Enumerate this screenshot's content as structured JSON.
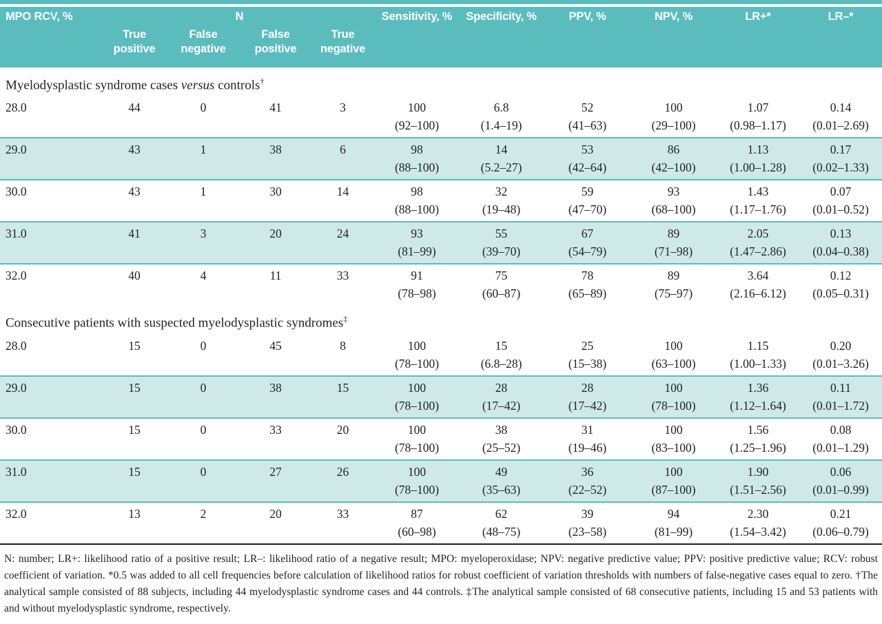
{
  "colors": {
    "header_teal": "#5bbcbd",
    "shaded_row_teal": "#cfe9e9",
    "text": "#231f20"
  },
  "table": {
    "header": {
      "mpo_label": "MPO RCV, %",
      "group_label": "N",
      "sub_columns": [
        "True positive",
        "False negative",
        "False positive",
        "True negative"
      ],
      "stat_columns": [
        "Sensitivity, %",
        "Specificity, %",
        "PPV, %",
        "NPV, %",
        "LR+*",
        "LR–*"
      ]
    },
    "sections": [
      {
        "title": [
          {
            "t": "Myelodysplastic syndrome cases "
          },
          {
            "t": "versus",
            "style": "italic"
          },
          {
            "t": " controls"
          },
          {
            "t": "†",
            "style": "sup"
          }
        ],
        "rows": [
          {
            "shaded": false,
            "cells": [
              {
                "v": "28.0"
              },
              {
                "v": "44"
              },
              {
                "v": "0"
              },
              {
                "v": "41"
              },
              {
                "v": "3"
              },
              {
                "v": "100",
                "ci": "(92–100)"
              },
              {
                "v": "6.8",
                "ci": "(1.4–19)"
              },
              {
                "v": "52",
                "ci": "(41–63)"
              },
              {
                "v": "100",
                "ci": "(29–100)"
              },
              {
                "v": "1.07",
                "ci": "(0.98–1.17)"
              },
              {
                "v": "0.14",
                "ci": "(0.01–2.69)"
              }
            ]
          },
          {
            "shaded": true,
            "cells": [
              {
                "v": "29.0"
              },
              {
                "v": "43"
              },
              {
                "v": "1"
              },
              {
                "v": "38"
              },
              {
                "v": "6"
              },
              {
                "v": "98",
                "ci": "(88–100)"
              },
              {
                "v": "14",
                "ci": "(5.2–27)"
              },
              {
                "v": "53",
                "ci": "(42–64)"
              },
              {
                "v": "86",
                "ci": "(42–100)"
              },
              {
                "v": "1.13",
                "ci": "(1.00–1.28)"
              },
              {
                "v": "0.17",
                "ci": "(0.02–1.33)"
              }
            ]
          },
          {
            "shaded": false,
            "cells": [
              {
                "v": "30.0"
              },
              {
                "v": "43"
              },
              {
                "v": "1"
              },
              {
                "v": "30"
              },
              {
                "v": "14"
              },
              {
                "v": "98",
                "ci": "(88–100)"
              },
              {
                "v": "32",
                "ci": "(19–48)"
              },
              {
                "v": "59",
                "ci": "(47–70)"
              },
              {
                "v": "93",
                "ci": "(68–100)"
              },
              {
                "v": "1.43",
                "ci": "(1.17–1.76)"
              },
              {
                "v": "0.07",
                "ci": "(0.01–0.52)"
              }
            ]
          },
          {
            "shaded": true,
            "cells": [
              {
                "v": "31.0"
              },
              {
                "v": "41"
              },
              {
                "v": "3"
              },
              {
                "v": "20"
              },
              {
                "v": "24"
              },
              {
                "v": "93",
                "ci": "(81–99)"
              },
              {
                "v": "55",
                "ci": "(39–70)"
              },
              {
                "v": "67",
                "ci": "(54–79)"
              },
              {
                "v": "89",
                "ci": "(71–98)"
              },
              {
                "v": "2.05",
                "ci": "(1.47–2.86)"
              },
              {
                "v": "0.13",
                "ci": "(0.04–0.38)"
              }
            ]
          },
          {
            "shaded": false,
            "cells": [
              {
                "v": "32.0"
              },
              {
                "v": "40"
              },
              {
                "v": "4"
              },
              {
                "v": "11"
              },
              {
                "v": "33"
              },
              {
                "v": "91",
                "ci": "(78–98)"
              },
              {
                "v": "75",
                "ci": "(60–87)"
              },
              {
                "v": "78",
                "ci": "(65–89)"
              },
              {
                "v": "89",
                "ci": "(75–97)"
              },
              {
                "v": "3.64",
                "ci": "(2.16–6.12)"
              },
              {
                "v": "0.12",
                "ci": "(0.05–0.31)"
              }
            ]
          }
        ]
      },
      {
        "title": [
          {
            "t": "Consecutive patients with suspected myelodysplastic syndromes"
          },
          {
            "t": "‡",
            "style": "sup"
          }
        ],
        "rows": [
          {
            "shaded": false,
            "cells": [
              {
                "v": "28.0"
              },
              {
                "v": "15"
              },
              {
                "v": "0"
              },
              {
                "v": "45"
              },
              {
                "v": "8"
              },
              {
                "v": "100",
                "ci": "(78–100)"
              },
              {
                "v": "15",
                "ci": "(6.8–28)"
              },
              {
                "v": "25",
                "ci": "(15–38)"
              },
              {
                "v": "100",
                "ci": "(63–100)"
              },
              {
                "v": "1.15",
                "ci": "(1.00–1.33)"
              },
              {
                "v": "0.20",
                "ci": "(0.01–3.26)"
              }
            ]
          },
          {
            "shaded": true,
            "cells": [
              {
                "v": "29.0"
              },
              {
                "v": "15"
              },
              {
                "v": "0"
              },
              {
                "v": "38"
              },
              {
                "v": "15"
              },
              {
                "v": "100",
                "ci": "(78–100)"
              },
              {
                "v": "28",
                "ci": "(17–42)"
              },
              {
                "v": "28",
                "ci": "(17–42)"
              },
              {
                "v": "100",
                "ci": "(78–100)"
              },
              {
                "v": "1.36",
                "ci": "(1.12–1.64)"
              },
              {
                "v": "0.11",
                "ci": "(0.01–1.72)"
              }
            ]
          },
          {
            "shaded": false,
            "cells": [
              {
                "v": "30.0"
              },
              {
                "v": "15"
              },
              {
                "v": "0"
              },
              {
                "v": "33"
              },
              {
                "v": "20"
              },
              {
                "v": "100",
                "ci": "(78–100)"
              },
              {
                "v": "38",
                "ci": "(25–52)"
              },
              {
                "v": "31",
                "ci": "(19–46)"
              },
              {
                "v": "100",
                "ci": "(83–100)"
              },
              {
                "v": "1.56",
                "ci": "(1.25–1.96)"
              },
              {
                "v": "0.08",
                "ci": "(0.01–1.29)"
              }
            ]
          },
          {
            "shaded": true,
            "cells": [
              {
                "v": "31.0"
              },
              {
                "v": "15"
              },
              {
                "v": "0"
              },
              {
                "v": "27"
              },
              {
                "v": "26"
              },
              {
                "v": "100",
                "ci": "(78–100)"
              },
              {
                "v": "49",
                "ci": "(35–63)"
              },
              {
                "v": "36",
                "ci": "(22–52)"
              },
              {
                "v": "100",
                "ci": "(87–100)"
              },
              {
                "v": "1.90",
                "ci": "(1.51–2.56)"
              },
              {
                "v": "0.06",
                "ci": "(0.01–0.99)"
              }
            ]
          },
          {
            "shaded": false,
            "cells": [
              {
                "v": "32.0"
              },
              {
                "v": "13"
              },
              {
                "v": "2"
              },
              {
                "v": "20"
              },
              {
                "v": "33"
              },
              {
                "v": "87",
                "ci": "(60–98)"
              },
              {
                "v": "62",
                "ci": "(48–75)"
              },
              {
                "v": "39",
                "ci": "(23–58)"
              },
              {
                "v": "94",
                "ci": "(81–99)"
              },
              {
                "v": "2.30",
                "ci": "(1.54–3.42)"
              },
              {
                "v": "0.21",
                "ci": "(0.06–0.79)"
              }
            ]
          }
        ]
      }
    ],
    "footnote": "N: number; LR+: likelihood ratio of a positive result; LR–: likelihood ratio of a negative result; MPO: myeloperoxidase; NPV: negative predictive value; PPV: positive predictive value; RCV: robust coefficient of variation. *0.5 was added to all cell frequencies before calculation of likelihood ratios for robust coefficient of variation thresholds with numbers of false-negative cases equal to zero. †The analytical sample consisted of 88 subjects, including 44 myelodysplastic syndrome cases and 44 controls. ‡The analytical sample consisted of 68 consecutive patients, including 15 and 53 patients with and without myelodysplastic syndrome, respectively."
  }
}
